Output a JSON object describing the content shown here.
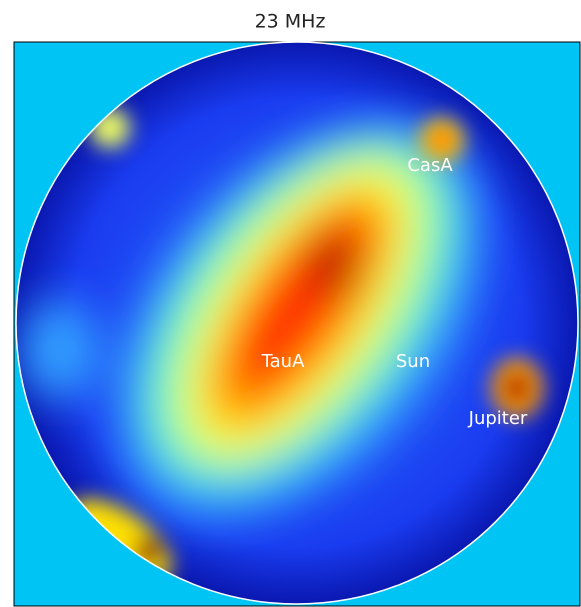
{
  "title": "23 MHz",
  "labels": [
    "CasA",
    "TauA",
    "Sun",
    "Jupiter"
  ]
}
